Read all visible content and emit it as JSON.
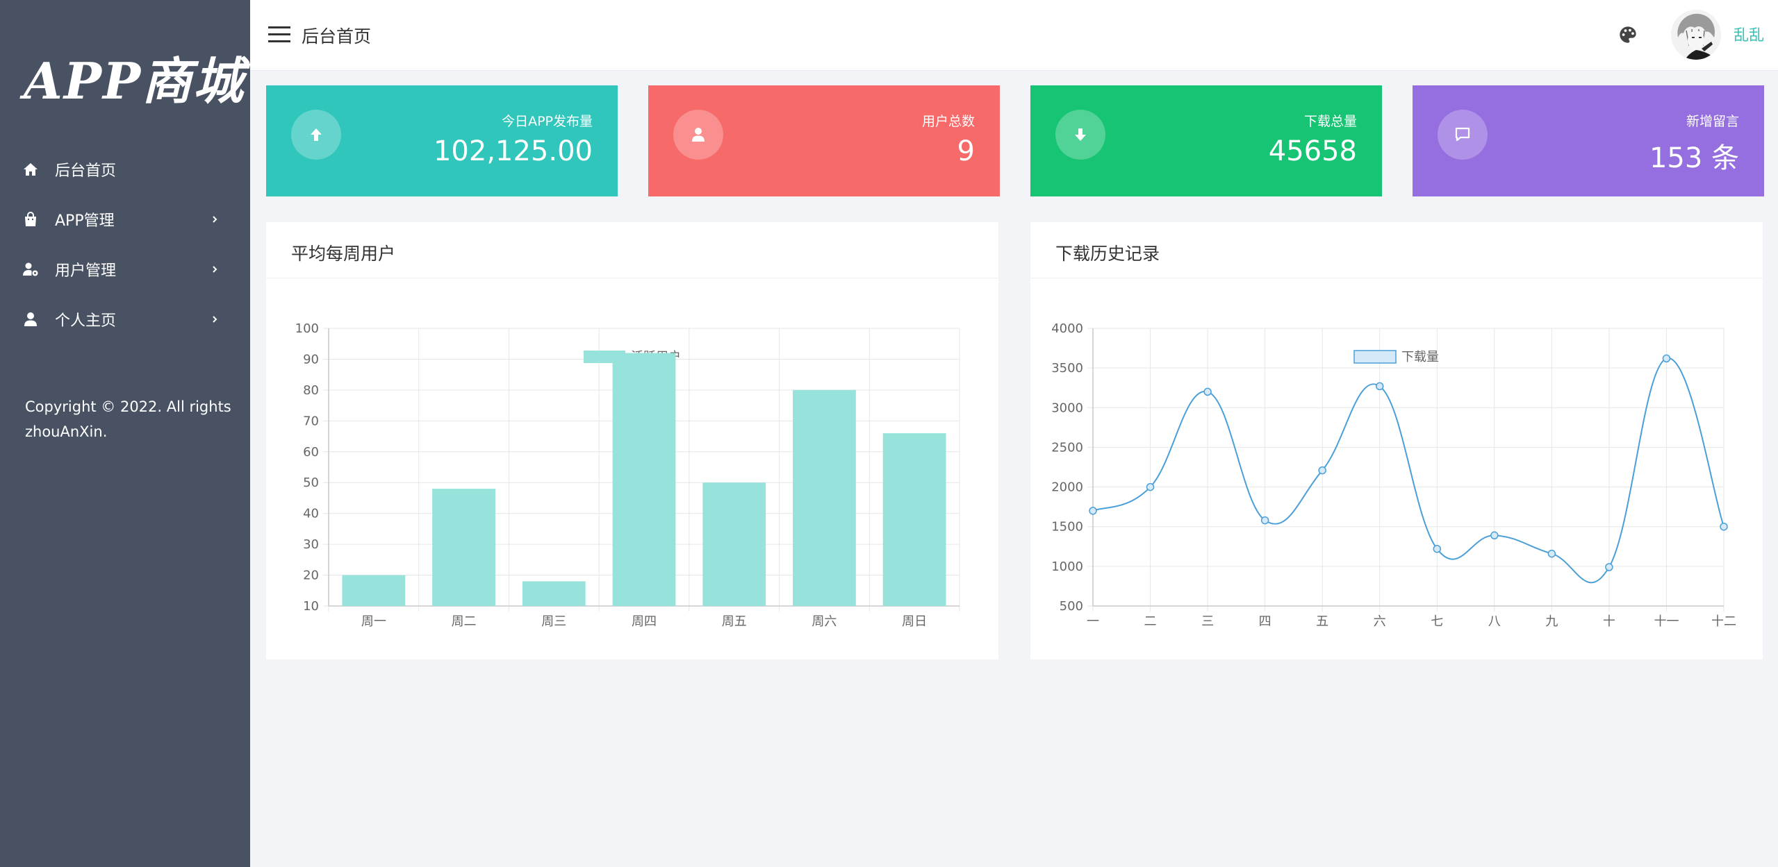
{
  "sidebar": {
    "logo": "APP商城",
    "items": [
      {
        "label": "后台首页",
        "icon": "home-icon",
        "has_submenu": false
      },
      {
        "label": "APP管理",
        "icon": "shopping-bag-icon",
        "has_submenu": true
      },
      {
        "label": "用户管理",
        "icon": "user-cog-icon",
        "has_submenu": true
      },
      {
        "label": "个人主页",
        "icon": "user-icon",
        "has_submenu": true
      }
    ],
    "copyright": "Copyright © 2022. All rights zhouAnXin."
  },
  "header": {
    "title": "后台首页",
    "username": "乱乱"
  },
  "cards": [
    {
      "label": "今日APP发布量",
      "value": "102,125.00",
      "icon": "arrow-up-icon",
      "color": "#31c6bb"
    },
    {
      "label": "用户总数",
      "value": "9",
      "icon": "user-icon",
      "color": "#f76a6a"
    },
    {
      "label": "下载总量",
      "value": "45658",
      "icon": "arrow-down-icon",
      "color": "#17c474"
    },
    {
      "label": "新增留言",
      "value": "153 条",
      "icon": "message-icon",
      "color": "#956ee0"
    }
  ],
  "panels": {
    "weekly": {
      "title": "平均每周用户"
    },
    "downloads": {
      "title": "下载历史记录"
    }
  },
  "chart_data": [
    {
      "type": "bar",
      "title": "平均每周用户",
      "categories": [
        "周一",
        "周二",
        "周三",
        "周四",
        "周五",
        "周六",
        "周日"
      ],
      "series": [
        {
          "name": "活跃用户",
          "values": [
            20,
            48,
            18,
            92,
            50,
            80,
            66
          ],
          "color": "#97e3dc"
        }
      ],
      "ylim": [
        10,
        100
      ],
      "yticks": [
        10,
        20,
        30,
        40,
        50,
        60,
        70,
        80,
        90,
        100
      ],
      "grid": true,
      "legend": "top-center"
    },
    {
      "type": "line",
      "title": "下载历史记录",
      "categories": [
        "一",
        "二",
        "三",
        "四",
        "五",
        "六",
        "七",
        "八",
        "九",
        "十",
        "十一",
        "十二"
      ],
      "series": [
        {
          "name": "下载量",
          "values": [
            1700,
            2000,
            3200,
            1580,
            2210,
            3270,
            1220,
            1390,
            1160,
            990,
            3620,
            1500
          ],
          "color": "#4a9fd8"
        }
      ],
      "ylim": [
        500,
        4000
      ],
      "yticks": [
        500,
        1000,
        1500,
        2000,
        2500,
        3000,
        3500,
        4000
      ],
      "grid": true,
      "smooth": true,
      "legend": "top-center"
    }
  ]
}
